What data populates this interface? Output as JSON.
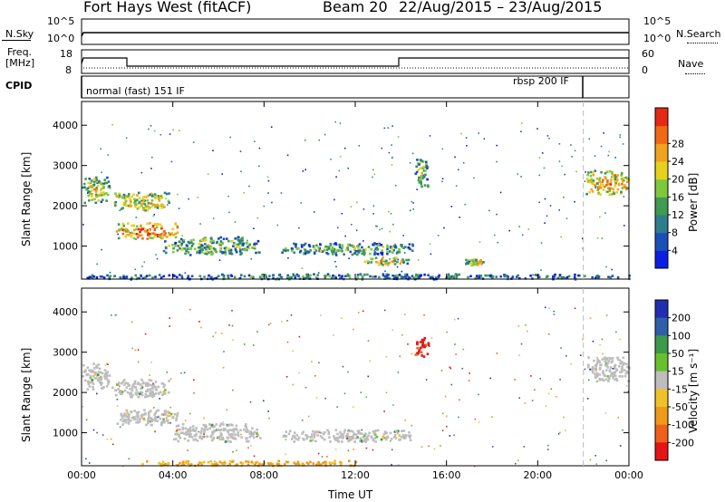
{
  "header": {
    "title": "Fort Hays West (fitACF)",
    "beam": "Beam 20",
    "date_range": "22/Aug/2015 – 23/Aug/2015"
  },
  "top_panels": {
    "nsky_label": "N.Sky",
    "nsky_ticks": [
      "10^5",
      "10^0"
    ],
    "nsearch_label": "N.Search",
    "nsearch_ticks": [
      "10^5",
      "10^0"
    ],
    "freq_label_1": "Freq.",
    "freq_label_2": "[MHz]",
    "freq_ticks": [
      "18",
      "8"
    ],
    "nave_label": "Nave",
    "nave_ticks": [
      "60",
      "0"
    ],
    "cpid_label": "CPID",
    "cpid_modes": [
      "normal (fast) 151 IF",
      "rbsp 200 IF"
    ]
  },
  "chart_data": [
    {
      "type": "heatmap",
      "panel": "power",
      "ylabel": "Slant Range [km]",
      "xlabel": "",
      "y_ticks": [
        "1000",
        "2000",
        "3000",
        "4000"
      ],
      "ylim": [
        180,
        4590
      ],
      "xlim": [
        0,
        24
      ],
      "colorbar_label": "Power [dB]",
      "colorbar_ticks": [
        "4",
        "8",
        "12",
        "16",
        "20",
        "24",
        "28"
      ],
      "colorbar_colors": [
        "#0a1ee6",
        "#1b4fb8",
        "#2e7d8c",
        "#3f9a52",
        "#7ec83c",
        "#e6d21e",
        "#f0a31e",
        "#f06a14",
        "#e62814"
      ],
      "regions": [
        {
          "t": [
            0.0,
            1.2
          ],
          "r": [
            2100,
            2750
          ],
          "level": 0.6
        },
        {
          "t": [
            1.3,
            3.8
          ],
          "r": [
            1900,
            2350
          ],
          "level": 0.65
        },
        {
          "t": [
            1.5,
            4.2
          ],
          "r": [
            1200,
            1600
          ],
          "level": 0.85
        },
        {
          "t": [
            3.5,
            7.8
          ],
          "r": [
            800,
            1250
          ],
          "level": 0.5
        },
        {
          "t": [
            8.7,
            14.5
          ],
          "r": [
            800,
            1100
          ],
          "level": 0.45
        },
        {
          "t": [
            12.3,
            14.3
          ],
          "r": [
            550,
            750
          ],
          "level": 0.65
        },
        {
          "t": [
            14.6,
            15.2
          ],
          "r": [
            2500,
            3200
          ],
          "level": 0.5
        },
        {
          "t": [
            16.8,
            17.6
          ],
          "r": [
            550,
            700
          ],
          "level": 0.7
        },
        {
          "t": [
            22.1,
            24.0
          ],
          "r": [
            2300,
            2900
          ],
          "level": 0.75
        },
        {
          "t": [
            0.0,
            24.0
          ],
          "r": [
            200,
            330
          ],
          "level": 0.35
        }
      ]
    },
    {
      "type": "heatmap",
      "panel": "velocity",
      "ylabel": "Slant Range [km]",
      "xlabel": "Time UT",
      "x_ticks": [
        "00:00",
        "04:00",
        "08:00",
        "12:00",
        "16:00",
        "20:00",
        "00:00"
      ],
      "y_ticks": [
        "1000",
        "2000",
        "3000",
        "4000"
      ],
      "ylim": [
        180,
        4590
      ],
      "xlim": [
        0,
        24
      ],
      "colorbar_label": "Velocity [m s⁻¹]",
      "colorbar_ticks": [
        "200",
        "100",
        "50",
        "15",
        "-15",
        "-50",
        "-100",
        "-200"
      ],
      "colorbar_colors": [
        "#1f2fb4",
        "#2f5fa8",
        "#3c9a4c",
        "#6ac02c",
        "#bdbdbd",
        "#f0c22a",
        "#f09a1a",
        "#f0601a",
        "#e61414"
      ],
      "regions": [
        {
          "t": [
            0.0,
            1.2
          ],
          "r": [
            2100,
            2750
          ],
          "class": "ground"
        },
        {
          "t": [
            1.3,
            3.8
          ],
          "r": [
            1900,
            2350
          ],
          "class": "ground"
        },
        {
          "t": [
            1.5,
            4.2
          ],
          "r": [
            1200,
            1600
          ],
          "class": "ground"
        },
        {
          "t": [
            4.0,
            7.8
          ],
          "r": [
            800,
            1250
          ],
          "class": "ground"
        },
        {
          "t": [
            8.7,
            14.5
          ],
          "r": [
            800,
            1100
          ],
          "class": "ground"
        },
        {
          "t": [
            14.6,
            15.2
          ],
          "r": [
            2900,
            3400
          ],
          "class": "red"
        },
        {
          "t": [
            22.1,
            24.0
          ],
          "r": [
            2300,
            2900
          ],
          "class": "ground"
        },
        {
          "t": [
            2.5,
            12.0
          ],
          "r": [
            200,
            330
          ],
          "class": "orange"
        }
      ]
    }
  ]
}
